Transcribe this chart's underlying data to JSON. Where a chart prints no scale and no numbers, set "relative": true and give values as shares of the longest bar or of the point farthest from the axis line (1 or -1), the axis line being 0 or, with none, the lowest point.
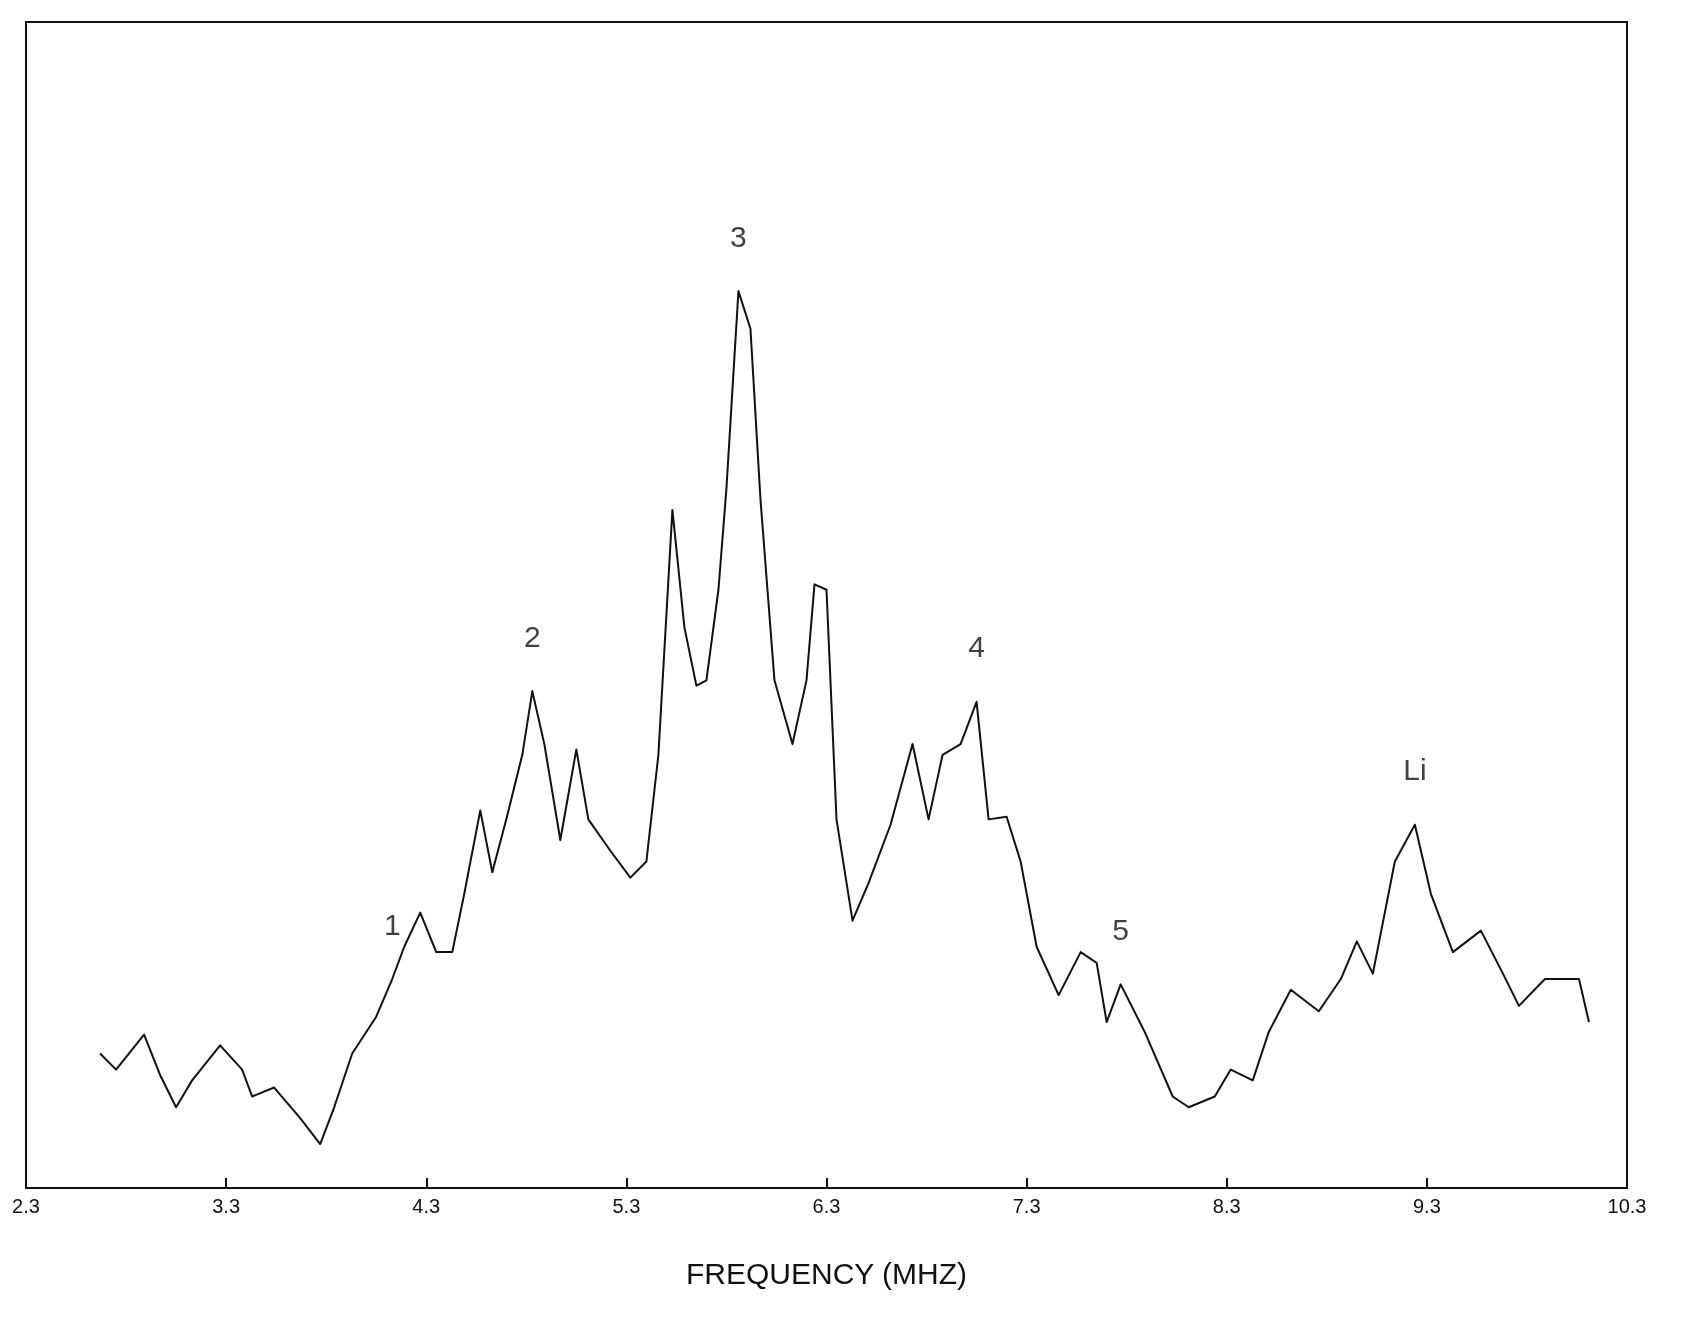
{
  "chart_data": {
    "type": "line",
    "relative": true,
    "xlabel": "FREQUENCY (MHZ)",
    "xlim": [
      2.3,
      10.3
    ],
    "xticks": [
      2.3,
      3.3,
      4.3,
      5.3,
      6.3,
      7.3,
      8.3,
      9.3,
      10.3
    ],
    "grid": false,
    "marker": "none",
    "line_style": "solid",
    "series": [
      {
        "color": "#111111",
        "x": [
          2.67,
          2.75,
          2.89,
          2.97,
          3.05,
          3.13,
          3.27,
          3.38,
          3.43,
          3.54,
          3.67,
          3.77,
          3.84,
          3.93,
          4.05,
          4.13,
          4.19,
          4.27,
          4.35,
          4.43,
          4.49,
          4.57,
          4.63,
          4.7,
          4.78,
          4.83,
          4.89,
          4.97,
          5.05,
          5.11,
          5.22,
          5.32,
          5.4,
          5.46,
          5.53,
          5.59,
          5.65,
          5.7,
          5.76,
          5.8,
          5.86,
          5.92,
          5.97,
          6.04,
          6.13,
          6.2,
          6.24,
          6.3,
          6.35,
          6.43,
          6.51,
          6.62,
          6.73,
          6.81,
          6.88,
          6.97,
          7.05,
          7.11,
          7.2,
          7.27,
          7.35,
          7.46,
          7.57,
          7.65,
          7.7,
          7.77,
          7.89,
          8.03,
          8.11,
          8.24,
          8.32,
          8.43,
          8.51,
          8.62,
          8.76,
          8.87,
          8.95,
          9.03,
          9.14,
          9.24,
          9.32,
          9.43,
          9.57,
          9.68,
          9.76,
          9.89,
          10.06,
          10.11
        ],
        "values": [
          0.15,
          0.132,
          0.171,
          0.126,
          0.09,
          0.12,
          0.159,
          0.132,
          0.102,
          0.112,
          0.078,
          0.049,
          0.09,
          0.15,
          0.191,
          0.233,
          0.269,
          0.307,
          0.263,
          0.263,
          0.328,
          0.421,
          0.352,
          0.411,
          0.483,
          0.554,
          0.495,
          0.388,
          0.489,
          0.411,
          0.376,
          0.346,
          0.364,
          0.483,
          0.756,
          0.625,
          0.56,
          0.566,
          0.667,
          0.78,
          1.0,
          0.958,
          0.768,
          0.566,
          0.495,
          0.566,
          0.673,
          0.667,
          0.411,
          0.298,
          0.34,
          0.405,
          0.495,
          0.411,
          0.483,
          0.495,
          0.542,
          0.411,
          0.414,
          0.364,
          0.269,
          0.215,
          0.263,
          0.251,
          0.185,
          0.227,
          0.174,
          0.102,
          0.09,
          0.102,
          0.132,
          0.12,
          0.174,
          0.221,
          0.197,
          0.233,
          0.275,
          0.239,
          0.364,
          0.405,
          0.328,
          0.263,
          0.287,
          0.239,
          0.203,
          0.233,
          0.233,
          0.185
        ]
      }
    ],
    "annotations": [
      {
        "text": "1",
        "x": 4.13,
        "y": 0.233
      },
      {
        "text": "2",
        "x": 4.83,
        "y": 0.554
      },
      {
        "text": "3",
        "x": 5.86,
        "y": 1.0
      },
      {
        "text": "4",
        "x": 7.05,
        "y": 0.542
      },
      {
        "text": "5",
        "x": 7.77,
        "y": 0.227
      },
      {
        "text": "Li",
        "x": 9.24,
        "y": 0.405
      }
    ]
  }
}
